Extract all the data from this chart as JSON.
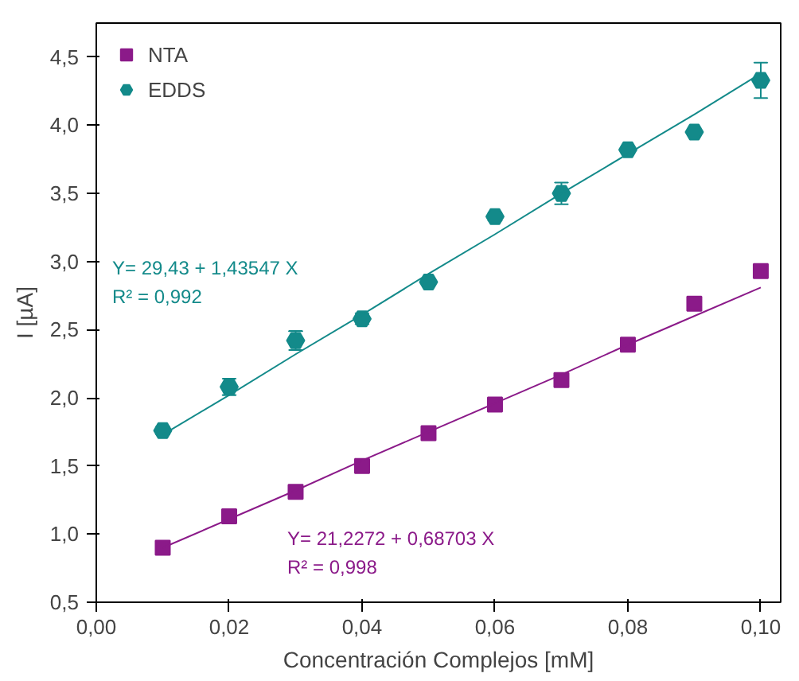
{
  "chart_data": {
    "type": "scatter",
    "xlabel": "Concentración Complejos [mM]",
    "ylabel": "I [µA]",
    "xlim": [
      0,
      0.103
    ],
    "ylim": [
      0.5,
      4.75
    ],
    "xticks": [
      {
        "value": 0,
        "label": "0,00"
      },
      {
        "value": 0.02,
        "label": "0,02"
      },
      {
        "value": 0.04,
        "label": "0,04"
      },
      {
        "value": 0.06,
        "label": "0,06"
      },
      {
        "value": 0.08,
        "label": "0,08"
      },
      {
        "value": 0.1,
        "label": "0,10"
      }
    ],
    "yticks": [
      {
        "value": 0.5,
        "label": "0,5"
      },
      {
        "value": 1.0,
        "label": "1,0"
      },
      {
        "value": 1.5,
        "label": "1,5"
      },
      {
        "value": 2.0,
        "label": "2,0"
      },
      {
        "value": 2.5,
        "label": "2,5"
      },
      {
        "value": 3.0,
        "label": "3,0"
      },
      {
        "value": 3.5,
        "label": "3,5"
      },
      {
        "value": 4.0,
        "label": "4,0"
      },
      {
        "value": 4.5,
        "label": "4,5"
      }
    ],
    "grid": false,
    "legend": "top left",
    "x": [
      0.01,
      0.02,
      0.03,
      0.04,
      0.05,
      0.06,
      0.07,
      0.08,
      0.09,
      0.1
    ],
    "series": [
      {
        "name": "NTA",
        "color": "#8b1a89",
        "marker": "square",
        "values": [
          0.9,
          1.13,
          1.31,
          1.5,
          1.74,
          1.95,
          2.13,
          2.39,
          2.69,
          2.93
        ],
        "errors": [
          0.02,
          0.02,
          0.02,
          0.04,
          0.02,
          0.02,
          0.02,
          0.02,
          0.04,
          0.03
        ]
      },
      {
        "name": "EDDS",
        "color": "#138a8a",
        "marker": "circle",
        "values": [
          1.76,
          2.08,
          2.42,
          2.58,
          2.85,
          3.33,
          3.5,
          3.82,
          3.95,
          4.33
        ],
        "errors": [
          0.03,
          0.06,
          0.07,
          0.04,
          0.02,
          0.03,
          0.08,
          0.02,
          0.02,
          0.13
        ]
      },
      {
        "type": "line",
        "color": "#8b1a89",
        "values": [
          0.9,
          1.11,
          1.32,
          1.54,
          1.75,
          1.96,
          2.17,
          2.39,
          2.6,
          2.81
        ]
      },
      {
        "type": "line",
        "color": "#138a8a",
        "values": [
          1.73,
          2.02,
          2.32,
          2.61,
          2.91,
          3.2,
          3.5,
          3.79,
          4.08,
          4.38
        ]
      }
    ],
    "annotations": [
      "Y= 29,43 + 1,43547 X",
      "R² = 0,992",
      "Y= 21,2272 + 0,68703 X",
      "R² = 0,998"
    ]
  }
}
